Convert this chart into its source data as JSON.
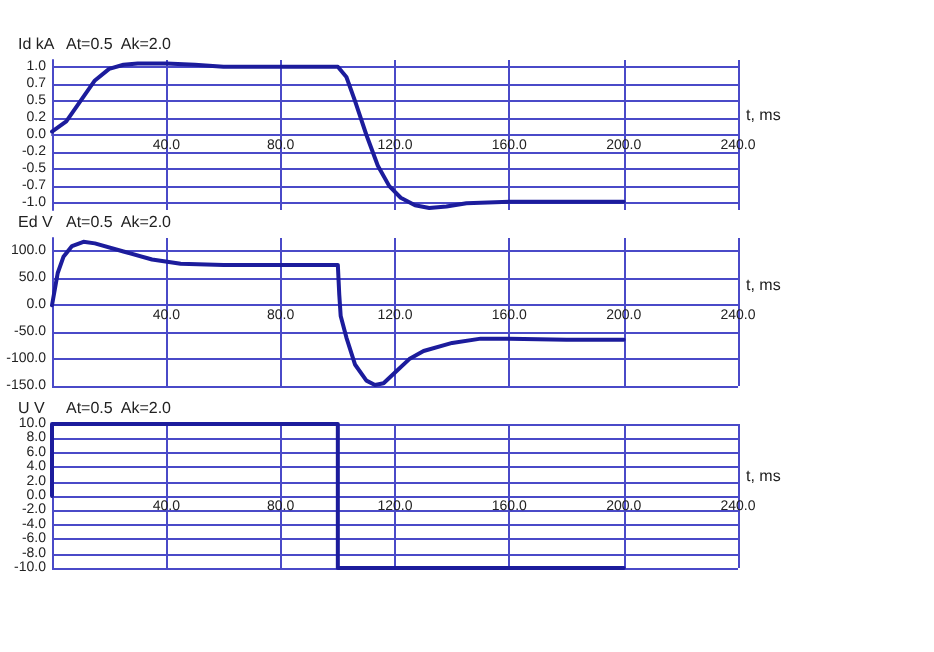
{
  "chart_data": [
    {
      "type": "line",
      "ylabel": "Id kA",
      "annotations": [
        "At=0.5  Ak=2.0"
      ],
      "xlabel": "t, ms",
      "xlim": [
        0,
        240
      ],
      "xticks": [
        {
          "value": 0,
          "label": null
        },
        {
          "value": 40,
          "label": "40.0"
        },
        {
          "value": 80,
          "label": "80.0"
        },
        {
          "value": 120,
          "label": "120.0"
        },
        {
          "value": 160,
          "label": "160.0"
        },
        {
          "value": 200,
          "label": "200.0"
        },
        {
          "value": 240,
          "label": "240.0"
        }
      ],
      "ylim": [
        -1.1,
        1.1
      ],
      "yticks": [
        {
          "value": -1,
          "label": "-1.0"
        },
        {
          "value": -0.75,
          "label": "-0.7"
        },
        {
          "value": -0.5,
          "label": "-0.5"
        },
        {
          "value": -0.25,
          "label": "-0.2"
        },
        {
          "value": 0,
          "label": "0.0"
        },
        {
          "value": 0.25,
          "label": "0.2"
        },
        {
          "value": 0.5,
          "label": "0.5"
        },
        {
          "value": 0.75,
          "label": "0.7"
        },
        {
          "value": 1,
          "label": "1.0"
        }
      ],
      "grid": true,
      "marker": "none",
      "line_style": "solid",
      "series": [
        {
          "color": "#1c1c9c",
          "x": [
            0,
            5,
            10,
            15,
            20,
            25,
            30,
            40,
            50,
            60,
            100,
            103,
            106,
            110,
            114,
            118,
            122,
            127,
            132,
            138,
            145,
            160,
            200
          ],
          "values": [
            0.05,
            0.2,
            0.5,
            0.8,
            0.97,
            1.03,
            1.05,
            1.05,
            1.03,
            1.0,
            1.0,
            0.85,
            0.5,
            0.0,
            -0.45,
            -0.75,
            -0.92,
            -1.03,
            -1.07,
            -1.05,
            -1.0,
            -0.98,
            -0.98
          ]
        }
      ]
    },
    {
      "type": "line",
      "ylabel": "Ed V",
      "annotations": [
        "At=0.5  Ak=2.0"
      ],
      "xlabel": "t, ms",
      "xlim": [
        0,
        240
      ],
      "xticks": [
        {
          "value": 0,
          "label": null
        },
        {
          "value": 40,
          "label": "40.0"
        },
        {
          "value": 80,
          "label": "80.0"
        },
        {
          "value": 120,
          "label": "120.0"
        },
        {
          "value": 160,
          "label": "160.0"
        },
        {
          "value": 200,
          "label": "200.0"
        },
        {
          "value": 240,
          "label": "240.0"
        }
      ],
      "ylim": [
        -150,
        125
      ],
      "yticks": [
        {
          "value": -150,
          "label": "-150.0"
        },
        {
          "value": -100,
          "label": "-100.0"
        },
        {
          "value": -50,
          "label": "-50.0"
        },
        {
          "value": 0,
          "label": "0.0"
        },
        {
          "value": 50,
          "label": "50.0"
        },
        {
          "value": 100,
          "label": "100.0"
        }
      ],
      "grid": true,
      "marker": "none",
      "line_style": "solid",
      "series": [
        {
          "color": "#1c1c9c",
          "x": [
            0,
            1,
            2,
            4,
            7,
            11,
            15,
            25,
            35,
            45,
            60,
            100,
            100.5,
            101,
            103,
            106,
            110,
            113,
            116,
            120,
            125,
            130,
            140,
            150,
            160,
            180,
            200
          ],
          "values": [
            0,
            30,
            60,
            90,
            110,
            118,
            115,
            100,
            85,
            77,
            75,
            75,
            20,
            -20,
            -60,
            -110,
            -140,
            -148,
            -145,
            -125,
            -100,
            -85,
            -70,
            -62,
            -62,
            -64,
            -64
          ]
        }
      ]
    },
    {
      "type": "line",
      "ylabel": "U V",
      "annotations": [
        "At=0.5  Ak=2.0"
      ],
      "xlabel": "t, ms",
      "xlim": [
        0,
        240
      ],
      "xticks": [
        {
          "value": 0,
          "label": null
        },
        {
          "value": 40,
          "label": "40.0"
        },
        {
          "value": 80,
          "label": "80.0"
        },
        {
          "value": 120,
          "label": "120.0"
        },
        {
          "value": 160,
          "label": "160.0"
        },
        {
          "value": 200,
          "label": "200.0"
        },
        {
          "value": 240,
          "label": "240.0"
        }
      ],
      "ylim": [
        -10,
        10
      ],
      "yticks": [
        {
          "value": -10,
          "label": "-10.0"
        },
        {
          "value": -8,
          "label": "-8.0"
        },
        {
          "value": -6,
          "label": "-6.0"
        },
        {
          "value": -4,
          "label": "-4.0"
        },
        {
          "value": -2,
          "label": "-2.0"
        },
        {
          "value": 0,
          "label": "0.0"
        },
        {
          "value": 2,
          "label": "2.0"
        },
        {
          "value": 4,
          "label": "4.0"
        },
        {
          "value": 6,
          "label": "6.0"
        },
        {
          "value": 8,
          "label": "8.0"
        },
        {
          "value": 10,
          "label": "10.0"
        }
      ],
      "grid": true,
      "marker": "none",
      "line_style": "solid",
      "series": [
        {
          "color": "#1c1c9c",
          "x": [
            0,
            0,
            100,
            100,
            200
          ],
          "values": [
            0,
            10,
            10,
            -10,
            -10
          ]
        }
      ]
    }
  ]
}
